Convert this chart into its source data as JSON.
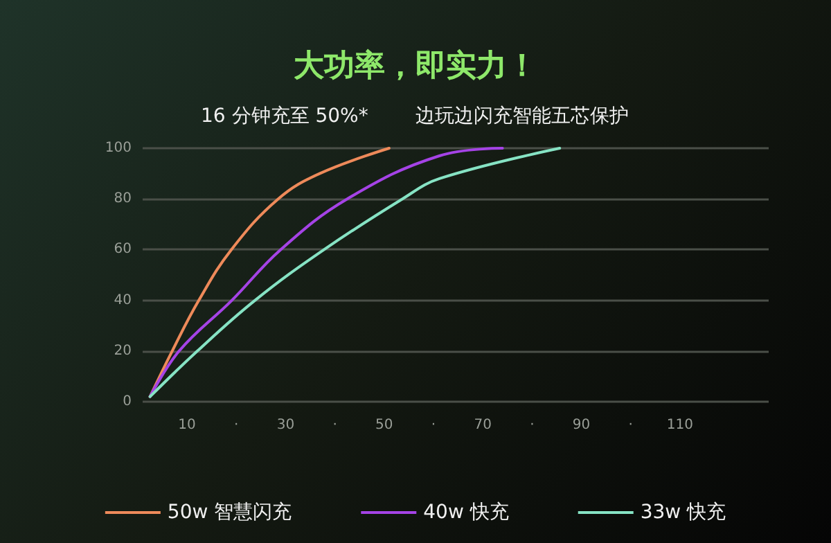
{
  "chart_data": {
    "type": "line",
    "title": "大功率，即实力！",
    "subtitle": "16 分钟充至 50%*",
    "annotations": [
      "边玩边闪充智能五芯保护"
    ],
    "xlim": [
      1,
      128
    ],
    "xticks": [
      10,
      {
        "value": 20,
        "label": "·"
      },
      30,
      {
        "value": 40,
        "label": "·"
      },
      50,
      {
        "value": 60,
        "label": "·"
      },
      70,
      {
        "value": 80,
        "label": "·"
      },
      90,
      {
        "value": 100,
        "label": "·"
      },
      110
    ],
    "ylim": [
      0,
      100
    ],
    "yticks": [
      0,
      20,
      40,
      60,
      80,
      100
    ],
    "grid": "y",
    "legend": "bottom",
    "marker": "none",
    "line_style": "solid",
    "series": [
      {
        "name": "50w 智慧闪充",
        "color": "#ee8a5a",
        "x": [
          2.5,
          7,
          12.4,
          19,
          28.5,
          36.9,
          51
        ],
        "values": [
          2,
          20,
          40,
          60,
          80,
          90,
          100
        ]
      },
      {
        "name": "40w 快充",
        "color": "#a543e6",
        "x": [
          2.5,
          8.4,
          19.1,
          29,
          42.5,
          61.2,
          74
        ],
        "values": [
          2,
          20,
          40,
          60,
          80,
          97,
          100
        ]
      },
      {
        "name": "33w 快充",
        "color": "#86e3c4",
        "x": [
          2.5,
          12.1,
          23.8,
          37.8,
          53.7,
          61.2,
          85.6
        ],
        "values": [
          2,
          20,
          40,
          60,
          80,
          88,
          100
        ]
      }
    ]
  }
}
